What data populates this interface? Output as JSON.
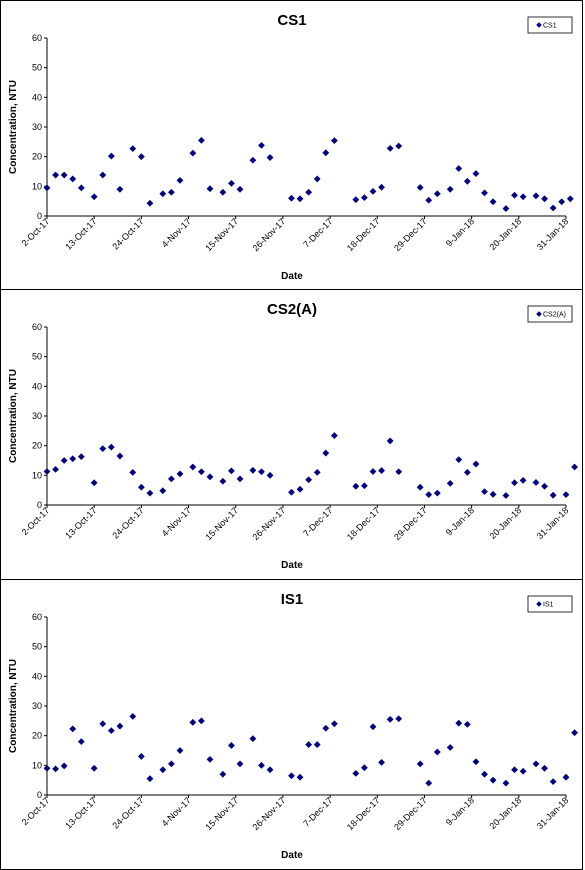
{
  "chart_data": [
    {
      "type": "scatter",
      "title": "CS1",
      "xlabel": "Date",
      "ylabel": "Concentration, NTU",
      "xlim": [
        "2-Oct-17",
        "31-Jan-18"
      ],
      "ylim": [
        0,
        60
      ],
      "yticks": [
        0,
        10,
        20,
        30,
        40,
        50,
        60
      ],
      "xticks": [
        "2-Oct-17",
        "13-Oct-17",
        "24-Oct-17",
        "4-Nov-17",
        "15-Nov-17",
        "26-Nov-17",
        "7-Dec-17",
        "18-Dec-17",
        "29-Dec-17",
        "9-Jan-18",
        "20-Jan-18",
        "31-Jan-18"
      ],
      "grid": false,
      "legend_position": "top-right",
      "marker_color": "#000080",
      "series": [
        {
          "name": "CS1",
          "points": [
            [
              "2-Oct-17",
              9.5
            ],
            [
              "4-Oct-17",
              13.8
            ],
            [
              "6-Oct-17",
              13.8
            ],
            [
              "8-Oct-17",
              12.5
            ],
            [
              "10-Oct-17",
              9.5
            ],
            [
              "13-Oct-17",
              6.5
            ],
            [
              "15-Oct-17",
              13.8
            ],
            [
              "17-Oct-17",
              20.2
            ],
            [
              "19-Oct-17",
              9.0
            ],
            [
              "22-Oct-17",
              22.7
            ],
            [
              "24-Oct-17",
              20.0
            ],
            [
              "26-Oct-17",
              4.3
            ],
            [
              "29-Oct-17",
              7.5
            ],
            [
              "31-Oct-17",
              8.0
            ],
            [
              "2-Nov-17",
              12.0
            ],
            [
              "5-Nov-17",
              21.2
            ],
            [
              "7-Nov-17",
              25.5
            ],
            [
              "9-Nov-17",
              9.2
            ],
            [
              "12-Nov-17",
              8.0
            ],
            [
              "14-Nov-17",
              11.0
            ],
            [
              "16-Nov-17",
              9.0
            ],
            [
              "19-Nov-17",
              18.8
            ],
            [
              "21-Nov-17",
              23.8
            ],
            [
              "23-Nov-17",
              19.7
            ],
            [
              "28-Nov-17",
              6.0
            ],
            [
              "30-Nov-17",
              5.8
            ],
            [
              "2-Dec-17",
              8.0
            ],
            [
              "4-Dec-17",
              12.5
            ],
            [
              "6-Dec-17",
              21.3
            ],
            [
              "8-Dec-17",
              25.4
            ],
            [
              "13-Dec-17",
              5.5
            ],
            [
              "15-Dec-17",
              6.2
            ],
            [
              "17-Dec-17",
              8.3
            ],
            [
              "19-Dec-17",
              9.7
            ],
            [
              "21-Dec-17",
              22.8
            ],
            [
              "23-Dec-17",
              23.6
            ],
            [
              "28-Dec-17",
              9.6
            ],
            [
              "30-Dec-17",
              5.3
            ],
            [
              "1-Jan-18",
              7.5
            ],
            [
              "4-Jan-18",
              9.0
            ],
            [
              "6-Jan-18",
              16.0
            ],
            [
              "8-Jan-18",
              11.7
            ],
            [
              "10-Jan-18",
              14.3
            ],
            [
              "12-Jan-18",
              7.8
            ],
            [
              "14-Jan-18",
              4.8
            ],
            [
              "17-Jan-18",
              2.5
            ],
            [
              "19-Jan-18",
              7.0
            ],
            [
              "21-Jan-18",
              6.5
            ],
            [
              "24-Jan-18",
              6.8
            ],
            [
              "26-Jan-18",
              5.8
            ],
            [
              "28-Jan-18",
              2.7
            ],
            [
              "30-Jan-18",
              4.8
            ],
            [
              "1-Feb-18",
              5.8
            ]
          ]
        }
      ]
    },
    {
      "type": "scatter",
      "title": "CS2(A)",
      "xlabel": "Date",
      "ylabel": "Concentration, NTU",
      "xlim": [
        "2-Oct-17",
        "31-Jan-18"
      ],
      "ylim": [
        0,
        60
      ],
      "yticks": [
        0,
        10,
        20,
        30,
        40,
        50,
        60
      ],
      "xticks": [
        "2-Oct-17",
        "13-Oct-17",
        "24-Oct-17",
        "4-Nov-17",
        "15-Nov-17",
        "26-Nov-17",
        "7-Dec-17",
        "18-Dec-17",
        "29-Dec-17",
        "9-Jan-18",
        "20-Jan-18",
        "31-Jan-18"
      ],
      "grid": false,
      "legend_position": "top-right",
      "marker_color": "#000080",
      "series": [
        {
          "name": "CS2(A)",
          "points": [
            [
              "2-Oct-17",
              11.3
            ],
            [
              "4-Oct-17",
              12.0
            ],
            [
              "6-Oct-17",
              15.0
            ],
            [
              "8-Oct-17",
              15.6
            ],
            [
              "10-Oct-17",
              16.3
            ],
            [
              "13-Oct-17",
              7.5
            ],
            [
              "15-Oct-17",
              19.0
            ],
            [
              "17-Oct-17",
              19.5
            ],
            [
              "19-Oct-17",
              16.5
            ],
            [
              "22-Oct-17",
              11.0
            ],
            [
              "24-Oct-17",
              6.0
            ],
            [
              "26-Oct-17",
              4.0
            ],
            [
              "29-Oct-17",
              4.8
            ],
            [
              "31-Oct-17",
              8.8
            ],
            [
              "2-Nov-17",
              10.5
            ],
            [
              "5-Nov-17",
              12.8
            ],
            [
              "7-Nov-17",
              11.2
            ],
            [
              "9-Nov-17",
              9.5
            ],
            [
              "12-Nov-17",
              8.0
            ],
            [
              "14-Nov-17",
              11.5
            ],
            [
              "16-Nov-17",
              8.8
            ],
            [
              "19-Nov-17",
              11.7
            ],
            [
              "21-Nov-17",
              11.2
            ],
            [
              "23-Nov-17",
              10.0
            ],
            [
              "28-Nov-17",
              4.3
            ],
            [
              "30-Nov-17",
              5.3
            ],
            [
              "2-Dec-17",
              8.5
            ],
            [
              "4-Dec-17",
              11.0
            ],
            [
              "6-Dec-17",
              17.5
            ],
            [
              "8-Dec-17",
              23.4
            ],
            [
              "13-Dec-17",
              6.3
            ],
            [
              "15-Dec-17",
              6.5
            ],
            [
              "17-Dec-17",
              11.3
            ],
            [
              "19-Dec-17",
              11.6
            ],
            [
              "21-Dec-17",
              21.6
            ],
            [
              "23-Dec-17",
              11.2
            ],
            [
              "28-Dec-17",
              6.0
            ],
            [
              "30-Dec-17",
              3.5
            ],
            [
              "1-Jan-18",
              4.0
            ],
            [
              "4-Jan-18",
              7.3
            ],
            [
              "6-Jan-18",
              15.3
            ],
            [
              "8-Jan-18",
              11.0
            ],
            [
              "10-Jan-18",
              13.8
            ],
            [
              "12-Jan-18",
              4.5
            ],
            [
              "14-Jan-18",
              3.6
            ],
            [
              "17-Jan-18",
              3.2
            ],
            [
              "19-Jan-18",
              7.5
            ],
            [
              "21-Jan-18",
              8.3
            ],
            [
              "24-Jan-18",
              7.6
            ],
            [
              "26-Jan-18",
              6.3
            ],
            [
              "28-Jan-18",
              3.3
            ],
            [
              "31-Jan-18",
              3.5
            ],
            [
              "2-Feb-18",
              12.8
            ]
          ]
        }
      ]
    },
    {
      "type": "scatter",
      "title": "IS1",
      "xlabel": "Date",
      "ylabel": "Concentration, NTU",
      "xlim": [
        "2-Oct-17",
        "31-Jan-18"
      ],
      "ylim": [
        0,
        60
      ],
      "yticks": [
        0,
        10,
        20,
        30,
        40,
        50,
        60
      ],
      "xticks": [
        "2-Oct-17",
        "13-Oct-17",
        "24-Oct-17",
        "4-Nov-17",
        "15-Nov-17",
        "26-Nov-17",
        "7-Dec-17",
        "18-Dec-17",
        "29-Dec-17",
        "9-Jan-18",
        "20-Jan-18",
        "31-Jan-18"
      ],
      "grid": false,
      "legend_position": "top-right",
      "marker_color": "#000080",
      "series": [
        {
          "name": "IS1",
          "points": [
            [
              "2-Oct-17",
              9.0
            ],
            [
              "4-Oct-17",
              8.8
            ],
            [
              "6-Oct-17",
              9.8
            ],
            [
              "8-Oct-17",
              22.3
            ],
            [
              "10-Oct-17",
              18.0
            ],
            [
              "13-Oct-17",
              9.0
            ],
            [
              "15-Oct-17",
              24.0
            ],
            [
              "17-Oct-17",
              21.7
            ],
            [
              "19-Oct-17",
              23.2
            ],
            [
              "22-Oct-17",
              26.5
            ],
            [
              "24-Oct-17",
              13.0
            ],
            [
              "26-Oct-17",
              5.5
            ],
            [
              "29-Oct-17",
              8.5
            ],
            [
              "31-Oct-17",
              10.5
            ],
            [
              "2-Nov-17",
              15.0
            ],
            [
              "5-Nov-17",
              24.5
            ],
            [
              "7-Nov-17",
              25.0
            ],
            [
              "9-Nov-17",
              12.0
            ],
            [
              "12-Nov-17",
              7.0
            ],
            [
              "14-Nov-17",
              16.7
            ],
            [
              "16-Nov-17",
              10.5
            ],
            [
              "19-Nov-17",
              19.0
            ],
            [
              "21-Nov-17",
              10.0
            ],
            [
              "23-Nov-17",
              8.5
            ],
            [
              "28-Nov-17",
              6.5
            ],
            [
              "30-Nov-17",
              6.0
            ],
            [
              "2-Dec-17",
              17.0
            ],
            [
              "4-Dec-17",
              17.0
            ],
            [
              "6-Dec-17",
              22.5
            ],
            [
              "8-Dec-17",
              24.0
            ],
            [
              "13-Dec-17",
              7.3
            ],
            [
              "15-Dec-17",
              9.2
            ],
            [
              "17-Dec-17",
              23.0
            ],
            [
              "19-Dec-17",
              11.0
            ],
            [
              "21-Dec-17",
              25.5
            ],
            [
              "23-Dec-17",
              25.7
            ],
            [
              "28-Dec-17",
              10.5
            ],
            [
              "30-Dec-17",
              4.0
            ],
            [
              "1-Jan-18",
              14.5
            ],
            [
              "4-Jan-18",
              16.0
            ],
            [
              "6-Jan-18",
              24.2
            ],
            [
              "8-Jan-18",
              23.8
            ],
            [
              "10-Jan-18",
              11.2
            ],
            [
              "12-Jan-18",
              7.0
            ],
            [
              "14-Jan-18",
              5.0
            ],
            [
              "17-Jan-18",
              4.0
            ],
            [
              "19-Jan-18",
              8.5
            ],
            [
              "21-Jan-18",
              8.0
            ],
            [
              "24-Jan-18",
              10.5
            ],
            [
              "26-Jan-18",
              9.0
            ],
            [
              "28-Jan-18",
              4.5
            ],
            [
              "31-Jan-18",
              6.0
            ],
            [
              "2-Feb-18",
              21.0
            ]
          ]
        }
      ]
    }
  ]
}
